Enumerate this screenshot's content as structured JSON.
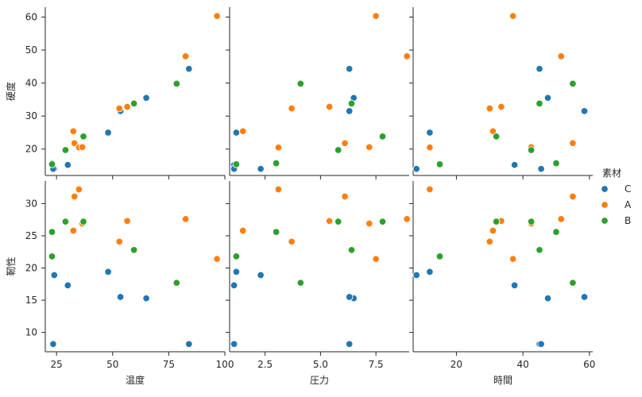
{
  "chart_data": {
    "type": "scatter",
    "layout": "pairgrid",
    "x_vars": [
      "温度",
      "圧力",
      "時間"
    ],
    "y_vars": [
      "硬度",
      "靭性"
    ],
    "hue": "素材",
    "legend": {
      "title": "素材",
      "placement": "right",
      "entries": [
        {
          "label": "C",
          "color": "#1f77b4"
        },
        {
          "label": "A",
          "color": "#ff7f0e"
        },
        {
          "label": "B",
          "color": "#2ca02c"
        }
      ]
    },
    "axes": {
      "温度": {
        "lim": [
          20,
          100
        ],
        "ticks": [
          25,
          50,
          75,
          100
        ],
        "tick_labels": [
          "25",
          "50",
          "75",
          "100"
        ]
      },
      "圧力": {
        "lim": [
          0.9,
          9.0
        ],
        "ticks": [
          2.5,
          5.0,
          7.5
        ],
        "tick_labels": [
          "2.5",
          "5.0",
          "7.5"
        ]
      },
      "時間": {
        "lim": [
          7,
          61
        ],
        "ticks": [
          20,
          40,
          60
        ],
        "tick_labels": [
          "20",
          "40",
          "60"
        ]
      },
      "硬度": {
        "lim": [
          12,
          63
        ],
        "ticks": [
          20,
          30,
          40,
          50,
          60
        ],
        "tick_labels": [
          "20",
          "30",
          "40",
          "50",
          "60"
        ]
      },
      "靭性": {
        "lim": [
          7,
          33.5
        ],
        "ticks": [
          10,
          15,
          20,
          25,
          30
        ],
        "tick_labels": [
          "10",
          "15",
          "20",
          "25",
          "30"
        ]
      }
    },
    "grid": false,
    "points": [
      {
        "素材": "C",
        "温度": 84,
        "圧力": 6.3,
        "時間": 45,
        "硬度": 44.3,
        "靭性": 8.2
      },
      {
        "素材": "C",
        "温度": 65,
        "圧力": 6.5,
        "時間": 47.5,
        "硬度": 35.5,
        "靭性": 15.3
      },
      {
        "素材": "C",
        "温度": 53.5,
        "圧力": 6.3,
        "時間": 58.5,
        "硬度": 31.5,
        "靭性": 15.5
      },
      {
        "素材": "C",
        "温度": 48,
        "圧力": 1.2,
        "時間": 12,
        "硬度": 25.0,
        "靭性": 19.4
      },
      {
        "素材": "C",
        "温度": 30,
        "圧力": 1.1,
        "時間": 37.5,
        "硬度": 15.2,
        "靭性": 17.3
      },
      {
        "素材": "C",
        "温度": 24,
        "圧力": 2.3,
        "時間": 8,
        "硬度": 14.0,
        "靭性": 18.9
      },
      {
        "素材": "C",
        "温度": 23.5,
        "圧力": 1.1,
        "時間": 45.5,
        "硬度": 14.0,
        "靭性": 8.2
      },
      {
        "素材": "A",
        "温度": 96.5,
        "圧力": 7.5,
        "時間": 37,
        "硬度": 60.3,
        "靭性": 21.4
      },
      {
        "素材": "A",
        "温度": 82.5,
        "圧力": 8.9,
        "時間": 51.5,
        "硬度": 48.1,
        "靭性": 27.6
      },
      {
        "素材": "A",
        "温度": 56.5,
        "圧力": 5.4,
        "時間": 33.5,
        "硬度": 32.8,
        "靭性": 27.3
      },
      {
        "素材": "A",
        "温度": 53,
        "圧力": 3.7,
        "時間": 30,
        "硬度": 32.3,
        "靭性": 24.1
      },
      {
        "素材": "A",
        "温度": 32.5,
        "圧力": 1.5,
        "時間": 31,
        "硬度": 25.4,
        "靭性": 25.8
      },
      {
        "素材": "A",
        "温度": 33,
        "圧力": 6.1,
        "時間": 55,
        "硬度": 21.8,
        "靭性": 31.1
      },
      {
        "素材": "A",
        "温度": 35,
        "圧力": 3.1,
        "時間": 12,
        "硬度": 20.5,
        "靭性": 32.2
      },
      {
        "素材": "A",
        "温度": 36.5,
        "圧力": 7.2,
        "時間": 42.5,
        "硬度": 20.6,
        "靭性": 26.9
      },
      {
        "素材": "B",
        "温度": 78.5,
        "圧力": 4.1,
        "時間": 55,
        "硬度": 39.8,
        "靭性": 17.7
      },
      {
        "素材": "B",
        "温度": 59.5,
        "圧力": 6.4,
        "時間": 45,
        "硬度": 33.8,
        "靭性": 22.8
      },
      {
        "素材": "B",
        "温度": 37,
        "圧力": 7.8,
        "時間": 32,
        "硬度": 23.8,
        "靭性": 27.2
      },
      {
        "素材": "B",
        "温度": 29,
        "圧力": 5.8,
        "時間": 42.5,
        "硬度": 19.7,
        "靭性": 27.2
      },
      {
        "素材": "B",
        "温度": 23,
        "圧力": 3.0,
        "時間": 50,
        "硬度": 15.7,
        "靭性": 25.6
      },
      {
        "素材": "B",
        "温度": 23,
        "圧力": 1.2,
        "時間": 15,
        "硬度": 15.4,
        "靭性": 21.8
      }
    ]
  }
}
